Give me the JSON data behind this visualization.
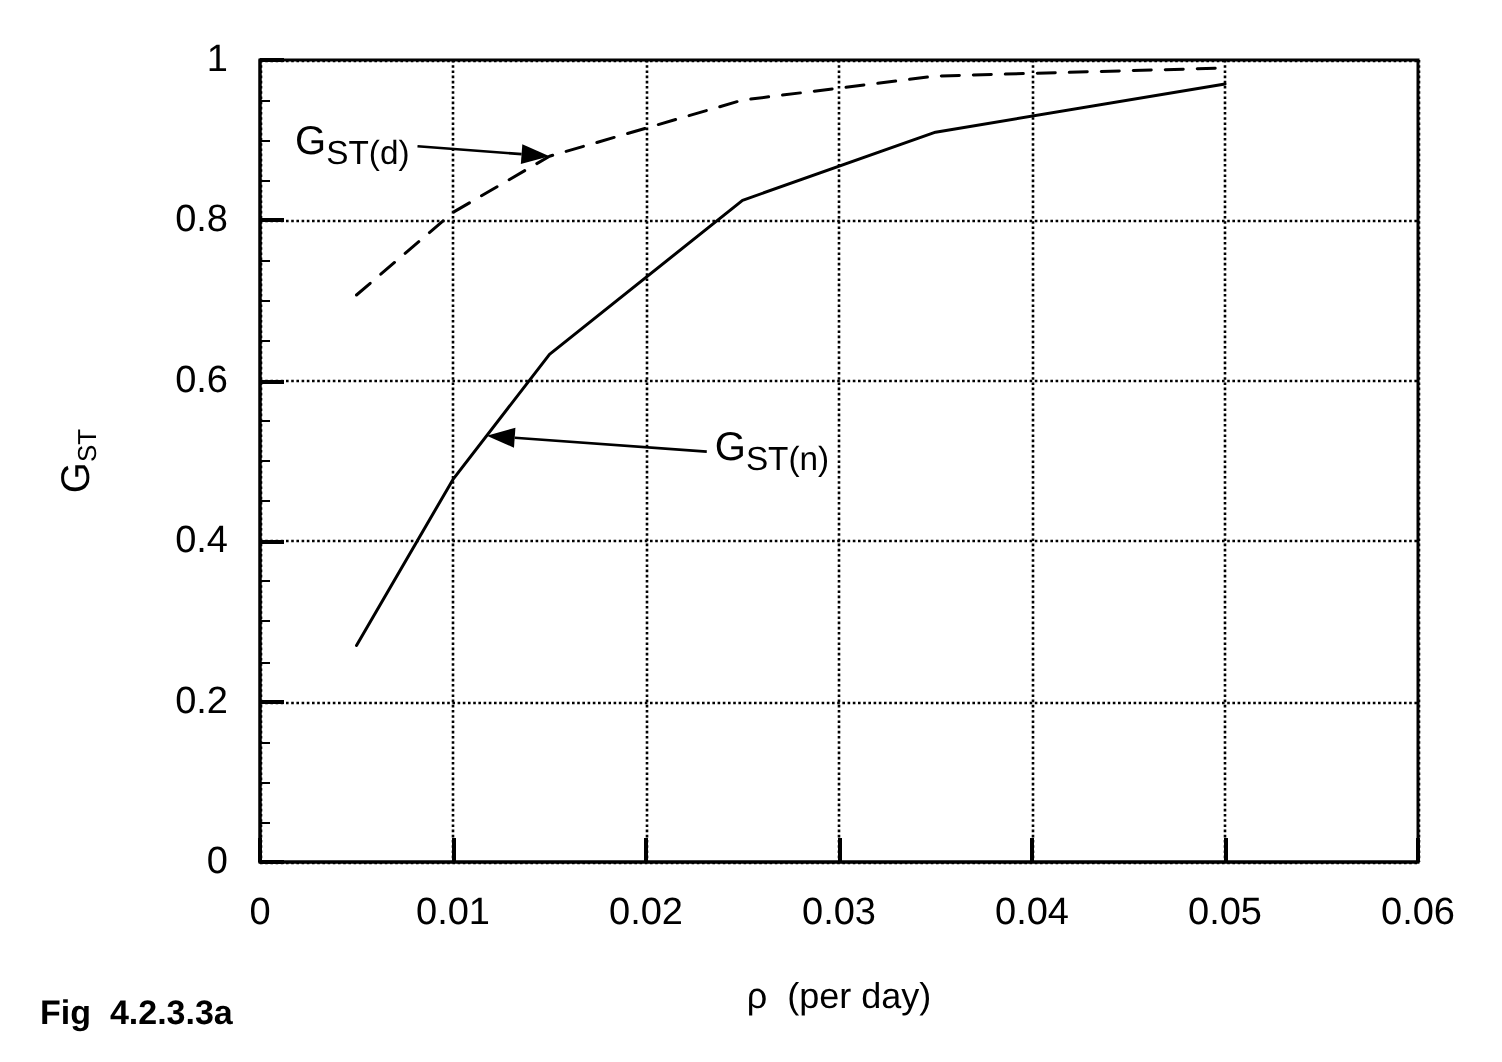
{
  "chart_data": {
    "type": "line",
    "xlabel": "ρ  (per day)",
    "ylabel": "G$_{ST}$",
    "x": [
      0.005,
      0.01,
      0.015,
      0.025,
      0.035,
      0.05
    ],
    "series": [
      {
        "name": "G$_{ST(n)}$",
        "color": "#000000",
        "line_style": "solid",
        "values": [
          0.27,
          0.477,
          0.633,
          0.825,
          0.91,
          0.97
        ]
      },
      {
        "name": "G$_{ST(d)}$",
        "color": "#000000",
        "line_style": "dashed",
        "values": [
          0.707,
          0.81,
          0.88,
          0.95,
          0.98,
          0.99
        ]
      }
    ],
    "xlim": [
      0,
      0.06
    ],
    "xticks": [
      0,
      0.01,
      0.02,
      0.03,
      0.04,
      0.05,
      0.06
    ],
    "ylim": [
      0,
      1
    ],
    "yticks": [
      0,
      0.2,
      0.4,
      0.6,
      0.8,
      1
    ],
    "grid": true,
    "marker": "none",
    "annotations": [
      "Fig  4.2.3.3a"
    ]
  }
}
